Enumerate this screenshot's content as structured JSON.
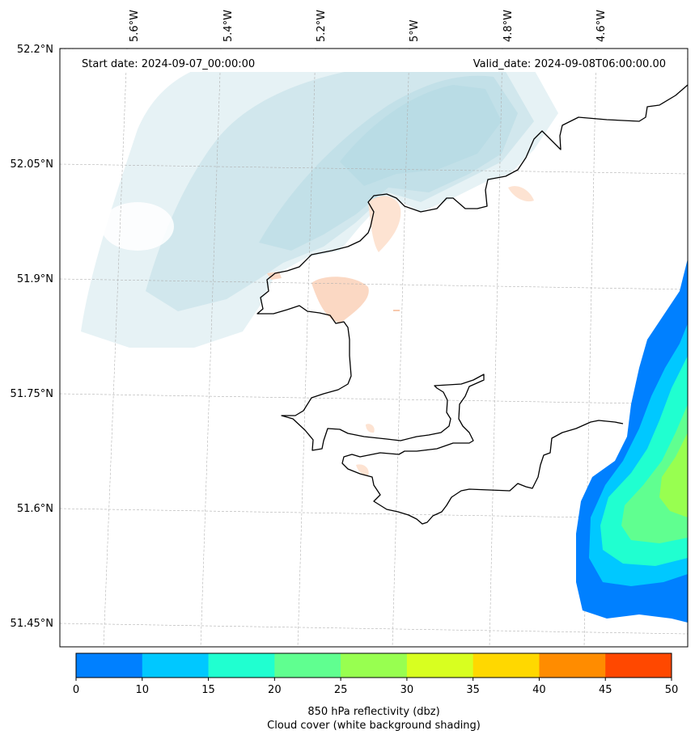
{
  "header": {
    "start_date": "Start date: 2024-09-07_00:00:00",
    "valid_date": "Valid_date: 2024-09-08T06:00:00.00"
  },
  "axes": {
    "longitude_labels": [
      "5.6°W",
      "5.4°W",
      "5.2°W",
      "5°W",
      "4.8°W",
      "4.6°W"
    ],
    "latitude_labels": [
      "52.2°N",
      "52.05°N",
      "51.9°N",
      "51.75°N",
      "51.6°N",
      "51.45°N"
    ]
  },
  "colorbar": {
    "ticks": [
      "0",
      "10",
      "15",
      "20",
      "25",
      "30",
      "35",
      "40",
      "45",
      "50"
    ],
    "colors": [
      "#0080ff",
      "#00c8ff",
      "#20ffd0",
      "#60ff90",
      "#98ff50",
      "#d8ff20",
      "#ffd800",
      "#ff8c00",
      "#ff4800"
    ],
    "label_line1": "850 hPa reflectivity (dbz)",
    "label_line2": "Cloud cover (white background shading)"
  },
  "colors": {
    "coastline": "#000000",
    "cloud_shade": "#c8e4ec",
    "light_precip": "#fde0cf"
  }
}
